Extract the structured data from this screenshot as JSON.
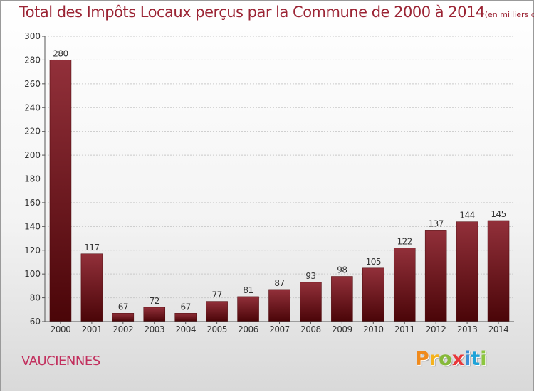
{
  "header": {
    "title": "Total des Impôts Locaux perçus par la Commune de 2000 à 2014",
    "unit": "(en milliers d'€)"
  },
  "footer": {
    "commune": "VAUCIENNES",
    "logo_letters": [
      "P",
      "r",
      "o",
      "x",
      "i",
      "t",
      "i"
    ],
    "logo_colors": [
      "#f08a1c",
      "#f5b21c",
      "#86b93a",
      "#e8373a",
      "#3c8fd6",
      "#1ea3d8",
      "#8cc63f"
    ]
  },
  "chart_data": {
    "type": "bar",
    "categories": [
      "2000",
      "2001",
      "2002",
      "2003",
      "2004",
      "2005",
      "2006",
      "2007",
      "2008",
      "2009",
      "2010",
      "2011",
      "2012",
      "2013",
      "2014"
    ],
    "values": [
      280,
      117,
      67,
      72,
      67,
      77,
      81,
      87,
      93,
      98,
      105,
      122,
      137,
      144,
      145
    ],
    "ylim": [
      60,
      300
    ],
    "yticks": [
      60,
      80,
      100,
      120,
      140,
      160,
      180,
      200,
      220,
      240,
      260,
      280,
      300
    ],
    "grid": true,
    "bar_color": "#7a1c22",
    "title": "Total des Impôts Locaux perçus par la Commune de 2000 à 2014",
    "xlabel": "",
    "ylabel": ""
  }
}
